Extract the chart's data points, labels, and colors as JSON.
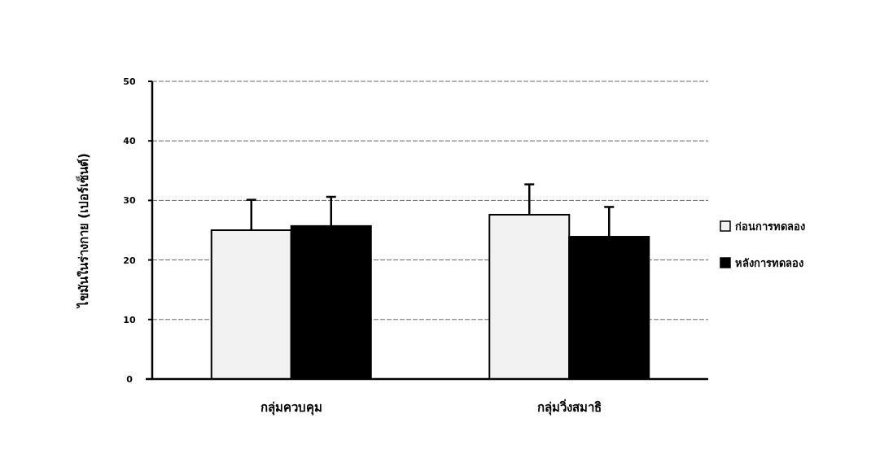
{
  "chart_data": {
    "type": "bar",
    "ylabel": "ไขมันในร่างกาย (เปอร์เซ็นต์)",
    "categories": [
      "กลุ่มควบคุม",
      "กลุ่มวิ่งสมาธิ"
    ],
    "series": [
      {
        "name": "ก่อนการทดลอง",
        "color": "#f2f2f2",
        "values": [
          25.0,
          27.6
        ],
        "errors": [
          [
            25.0,
            30.1
          ],
          [
            27.6,
            32.7
          ]
        ]
      },
      {
        "name": "หลังการทดลอง",
        "color": "#000000",
        "values": [
          25.7,
          23.9
        ],
        "errors": [
          [
            25.7,
            30.6
          ],
          [
            23.9,
            28.9
          ]
        ]
      }
    ],
    "ylim": [
      0,
      50
    ],
    "yticks": [
      0,
      10,
      20,
      30,
      40,
      50
    ],
    "grid": "y",
    "legend": "right"
  }
}
